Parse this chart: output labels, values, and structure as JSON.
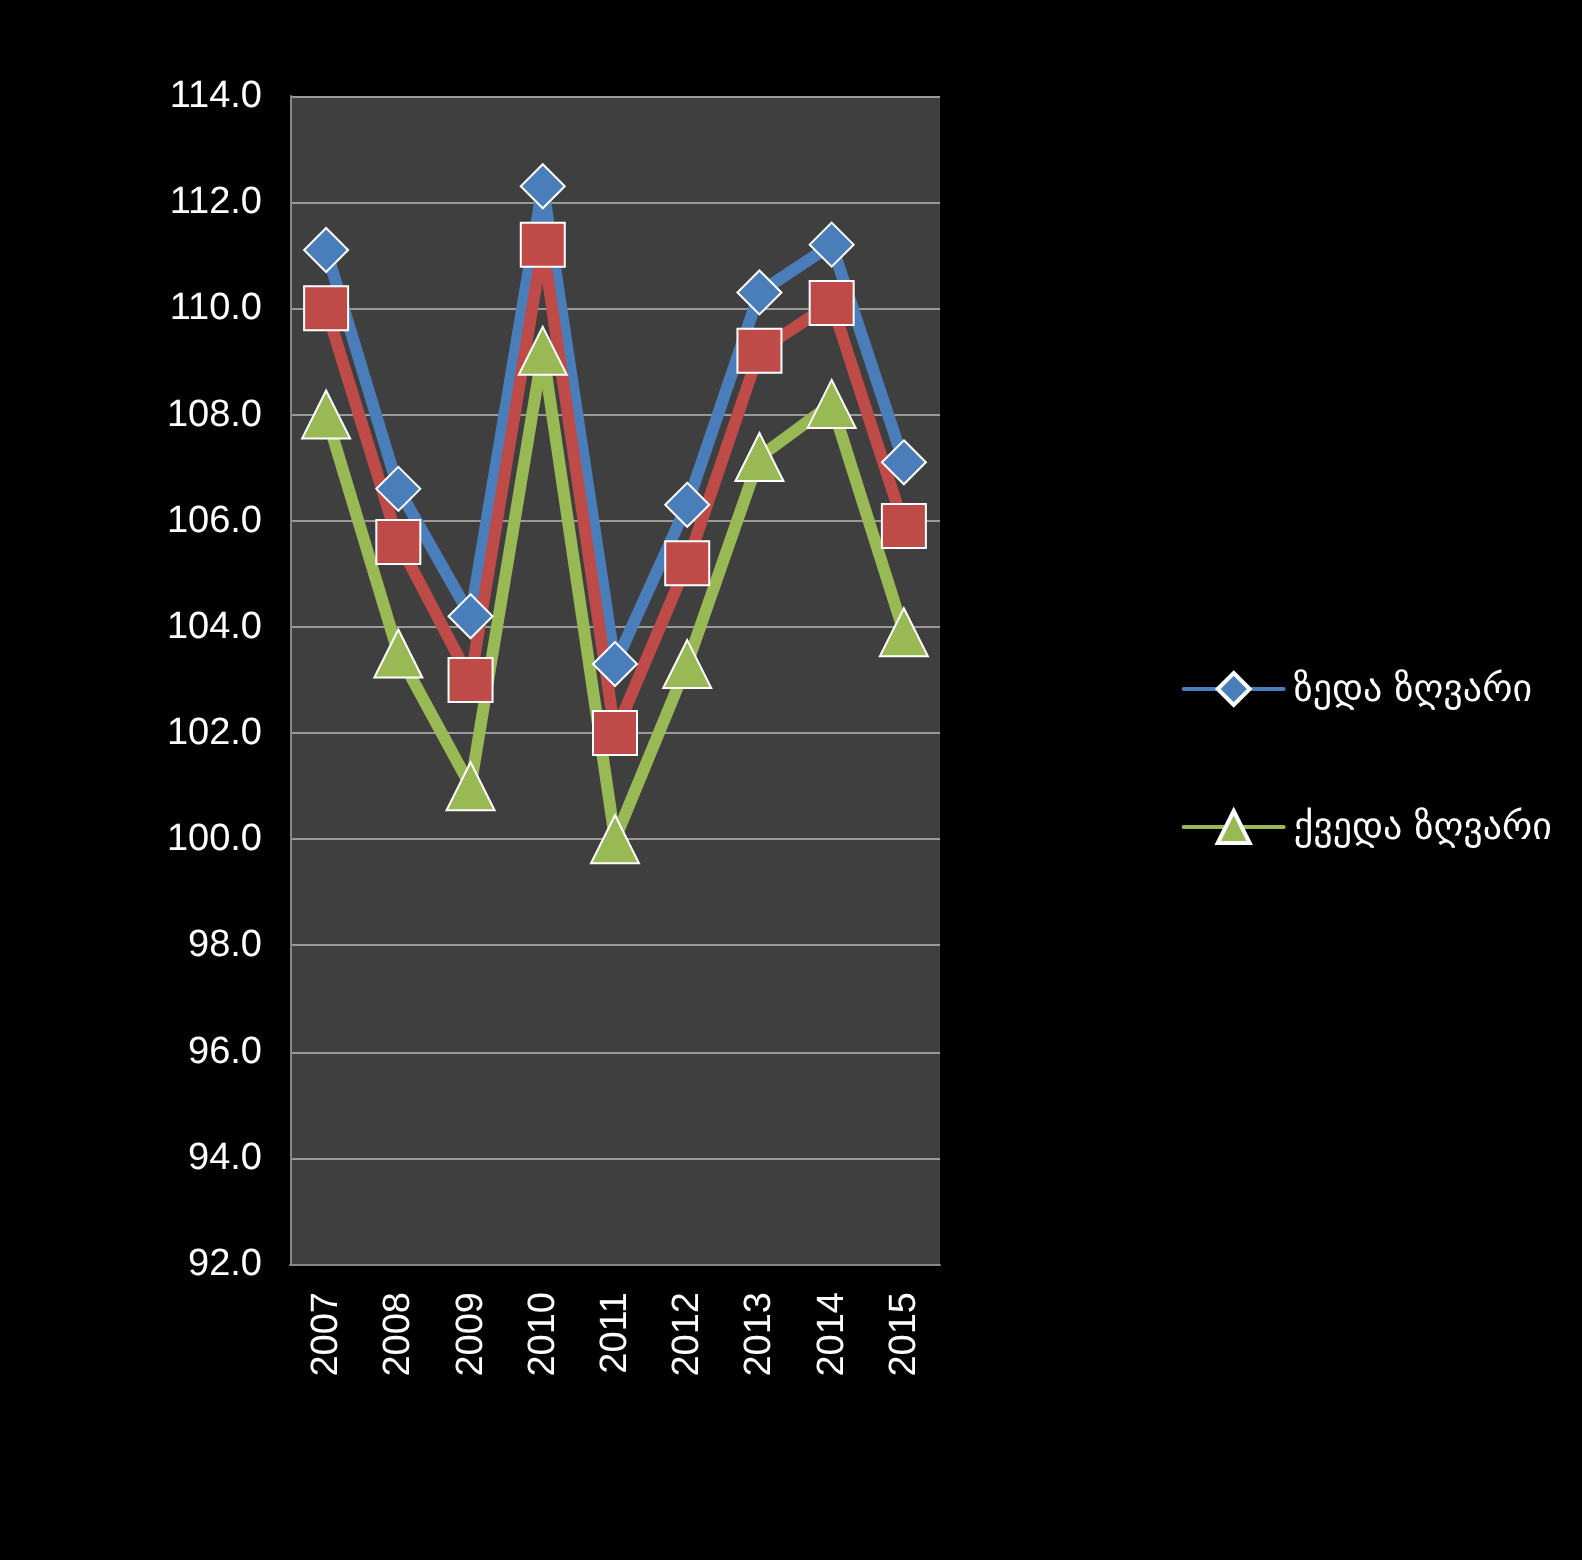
{
  "chart_data": {
    "type": "line",
    "categories": [
      "2007",
      "2008",
      "2009",
      "2010",
      "2011",
      "2012",
      "2013",
      "2014",
      "2015"
    ],
    "series": [
      {
        "name": "ზედა ზღვარი",
        "color": "#4a7ebb",
        "marker": "diamond",
        "values": [
          111.1,
          106.6,
          104.2,
          112.3,
          103.3,
          106.3,
          110.3,
          111.2,
          107.1
        ]
      },
      {
        "color": "#be4b48",
        "marker": "square",
        "values": [
          110.0,
          105.6,
          103.0,
          111.2,
          102.0,
          105.2,
          109.2,
          110.1,
          105.9
        ]
      },
      {
        "name": "ქვედა ზღვარი",
        "color": "#98b954",
        "marker": "triangle",
        "values": [
          108.0,
          103.5,
          101.0,
          109.2,
          100.0,
          103.3,
          107.2,
          108.2,
          103.9
        ]
      }
    ],
    "ylim": [
      92,
      114
    ],
    "yticks": [
      {
        "value": 92,
        "label": "92.0"
      },
      {
        "value": 94,
        "label": "94.0"
      },
      {
        "value": 96,
        "label": "96.0"
      },
      {
        "value": 98,
        "label": "98.0"
      },
      {
        "value": 100,
        "label": "100.0"
      },
      {
        "value": 102,
        "label": "102.0"
      },
      {
        "value": 104,
        "label": "104.0"
      },
      {
        "value": 106,
        "label": "106.0"
      },
      {
        "value": 108,
        "label": "108.0"
      },
      {
        "value": 110,
        "label": "110.0"
      },
      {
        "value": 112,
        "label": "112.0"
      },
      {
        "value": 114,
        "label": "114.0"
      }
    ],
    "grid": "y",
    "legend": "right"
  }
}
